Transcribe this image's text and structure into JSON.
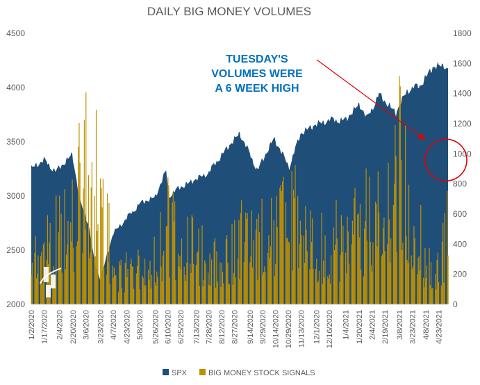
{
  "chart_data": {
    "type": "area",
    "title": "DAILY BIG MONEY VOLUMES",
    "xlabel": "",
    "ylabel": "",
    "y_left": {
      "range": [
        2000,
        4500
      ],
      "ticks": [
        "4500",
        "4000",
        "3500",
        "3000",
        "2500",
        "2000"
      ]
    },
    "y_right": {
      "range": [
        0,
        1800
      ],
      "ticks": [
        "1800",
        "1600",
        "1400",
        "1200",
        "1000",
        "800",
        "600",
        "400",
        "200",
        "0"
      ]
    },
    "grid": false,
    "legend": {
      "position": "bottom",
      "entries": [
        "SPX",
        "BIG MONEY STOCK SIGNALS"
      ]
    },
    "x_tick_labels": [
      "1/2/2020",
      "1/17/2020",
      "2/4/2020",
      "2/20/2020",
      "3/6/2020",
      "3/23/2020",
      "4/7/2020",
      "4/23/2020",
      "5/8/2020",
      "5/26/2020",
      "6/10/2020",
      "6/25/2020",
      "7/13/2020",
      "7/28/2020",
      "8/12/2020",
      "8/27/2020",
      "9/14/2020",
      "9/29/2020",
      "10/14/2020",
      "10/29/2020",
      "11/13/2020",
      "12/1/2020",
      "12/16/2020",
      "1/4/2021",
      "1/20/2021",
      "2/4/2021",
      "2/19/2021",
      "3/8/2021",
      "3/23/2021",
      "4/8/2021",
      "4/23/2021"
    ],
    "series": [
      {
        "name": "SPX",
        "type": "area",
        "axis": "left",
        "color": "#1F4E79",
        "points": [
          [
            "1/2/2020",
            3258
          ],
          [
            "1/17/2020",
            3330
          ],
          [
            "1/31/2020",
            3225
          ],
          [
            "2/19/2020",
            3386
          ],
          [
            "2/28/2020",
            2954
          ],
          [
            "3/9/2020",
            2746
          ],
          [
            "3/16/2020",
            2386
          ],
          [
            "3/23/2020",
            2237
          ],
          [
            "4/7/2020",
            2659
          ],
          [
            "4/23/2020",
            2797
          ],
          [
            "5/8/2020",
            2930
          ],
          [
            "5/26/2020",
            2991
          ],
          [
            "6/8/2020",
            3232
          ],
          [
            "6/11/2020",
            3002
          ],
          [
            "6/25/2020",
            3083
          ],
          [
            "7/13/2020",
            3155
          ],
          [
            "7/28/2020",
            3218
          ],
          [
            "8/12/2020",
            3380
          ],
          [
            "9/2/2020",
            3580
          ],
          [
            "9/23/2020",
            3237
          ],
          [
            "10/12/2020",
            3534
          ],
          [
            "10/30/2020",
            3270
          ],
          [
            "11/13/2020",
            3585
          ],
          [
            "12/1/2020",
            3662
          ],
          [
            "12/16/2020",
            3701
          ],
          [
            "1/4/2021",
            3700
          ],
          [
            "1/20/2021",
            3851
          ],
          [
            "1/29/2021",
            3714
          ],
          [
            "2/12/2021",
            3934
          ],
          [
            "3/4/2021",
            3768
          ],
          [
            "3/17/2021",
            3974
          ],
          [
            "4/1/2021",
            4019
          ],
          [
            "4/16/2021",
            4185
          ],
          [
            "4/29/2021",
            4211
          ],
          [
            "5/4/2021",
            4164
          ]
        ]
      },
      {
        "name": "BIG MONEY STOCK SIGNALS",
        "type": "bar",
        "axis": "right",
        "color": "#BF9000",
        "points": [
          [
            "1/2/2020",
            610
          ],
          [
            "2/4/2020",
            780
          ],
          [
            "2/20/2020",
            960
          ],
          [
            "2/28/2020",
            1500
          ],
          [
            "3/6/2020",
            1560
          ],
          [
            "3/23/2020",
            1380
          ],
          [
            "4/7/2020",
            420
          ],
          [
            "4/23/2020",
            380
          ],
          [
            "5/8/2020",
            460
          ],
          [
            "5/26/2020",
            520
          ],
          [
            "6/10/2020",
            880
          ],
          [
            "6/25/2020",
            760
          ],
          [
            "7/13/2020",
            540
          ],
          [
            "7/28/2020",
            560
          ],
          [
            "8/12/2020",
            530
          ],
          [
            "8/27/2020",
            650
          ],
          [
            "9/14/2020",
            860
          ],
          [
            "9/29/2020",
            750
          ],
          [
            "10/14/2020",
            800
          ],
          [
            "10/29/2020",
            960
          ],
          [
            "11/13/2020",
            920
          ],
          [
            "12/1/2020",
            700
          ],
          [
            "12/16/2020",
            620
          ],
          [
            "1/4/2021",
            800
          ],
          [
            "1/20/2021",
            860
          ],
          [
            "2/4/2021",
            950
          ],
          [
            "2/19/2021",
            1100
          ],
          [
            "3/8/2021",
            1600
          ],
          [
            "3/23/2021",
            1100
          ],
          [
            "4/8/2021",
            480
          ],
          [
            "4/23/2021",
            420
          ],
          [
            "5/4/2021",
            940
          ]
        ]
      }
    ],
    "annotations": [
      {
        "lines": [
          "TUESDAY'S",
          "VOLUMES WERE",
          "A 6 WEEK HIGH"
        ],
        "color": "#0070C0"
      },
      {
        "shape": "circle",
        "color": "#E00000",
        "target": "5/4/2021"
      },
      {
        "shape": "arrow",
        "color": "#E00000",
        "target": "5/4/2021"
      }
    ]
  }
}
